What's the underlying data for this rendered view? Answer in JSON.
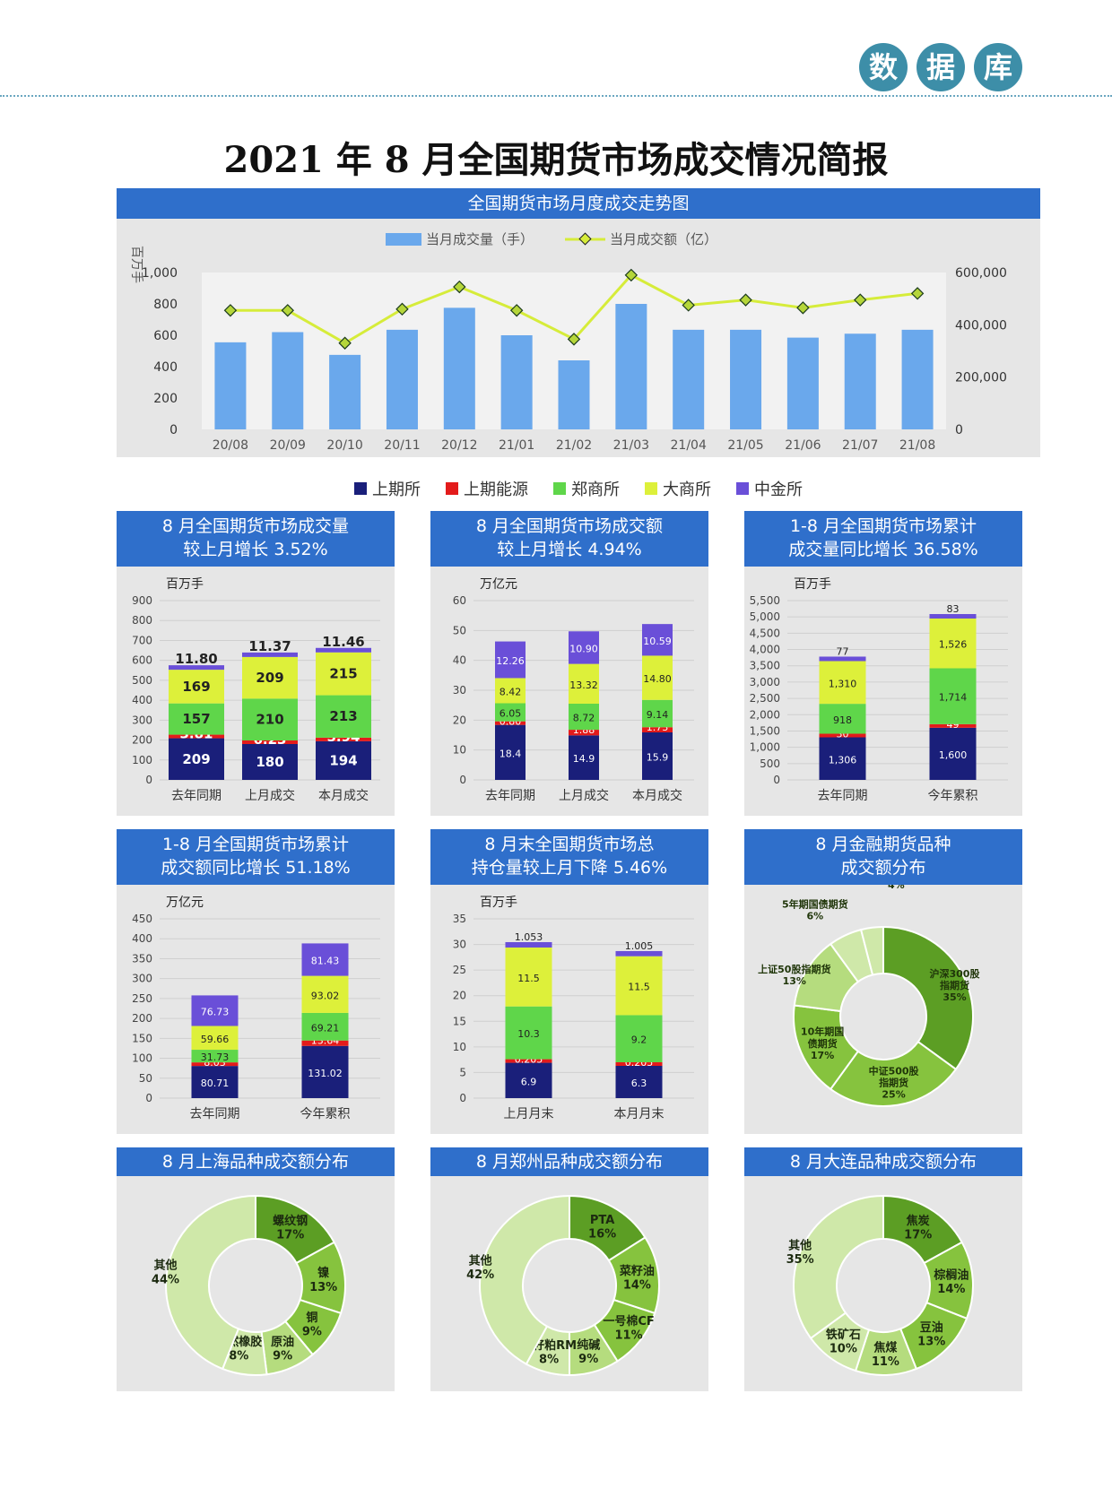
{
  "header": {
    "badge_chars": [
      "数",
      "据",
      "库"
    ]
  },
  "title": "2021 年 8 月全国期货市场成交情况简报",
  "colors": {
    "shfe": "#1a1f7a",
    "ine": "#e31b1b",
    "czce": "#5fd64a",
    "dce": "#ddf03a",
    "cffex": "#6a4fd8",
    "bar_blue": "#6aa8ec",
    "line_green": "#d6ec3a",
    "pie_dark": "#5c9e24",
    "pie_mid": "#86c33e",
    "pie_light": "#b5dc7e",
    "pie_lighter": "#cfe8a9"
  },
  "legend": [
    "上期所",
    "上期能源",
    "郑商所",
    "大商所",
    "中金所"
  ],
  "trend": {
    "title": "全国期货市场月度成交走势图",
    "left_unit": "百万手",
    "legend_bar": "当月成交量（手）",
    "legend_line": "当月成交额（亿）",
    "left_ticks": [
      "0",
      "200",
      "400",
      "600",
      "800",
      "1,000"
    ],
    "right_ticks": [
      "0",
      "200,000",
      "400,000",
      "600,000"
    ]
  },
  "panels": [
    {
      "title1": "8 月全国期货市场成交量",
      "title2": "较上月增长 3.52%",
      "unit": "百万手",
      "yticks": [
        "0",
        "100",
        "200",
        "300",
        "400",
        "500",
        "600",
        "700",
        "800",
        "900"
      ]
    },
    {
      "title1": "8 月全国期货市场成交额",
      "title2": "较上月增长 4.94%",
      "unit": "万亿元",
      "yticks": [
        "0",
        "10",
        "20",
        "30",
        "40",
        "50",
        "60"
      ]
    },
    {
      "title1": "1-8 月全国期货市场累计",
      "title2": "成交量同比增长 36.58%",
      "unit": "百万手",
      "yticks": [
        "0",
        "500",
        "1,000",
        "1,500",
        "2,000",
        "2,500",
        "3,000",
        "3,500",
        "4,000",
        "4,500",
        "5,000",
        "5,500"
      ]
    },
    {
      "title1": "1-8 月全国期货市场累计",
      "title2": "成交额同比增长 51.18%",
      "unit": "万亿元",
      "yticks": [
        "0",
        "50",
        "100",
        "150",
        "200",
        "250",
        "300",
        "350",
        "400",
        "450"
      ]
    },
    {
      "title1": "8 月末全国期货市场总",
      "title2": "持仓量较上月下降 5.46%",
      "unit": "百万手",
      "yticks": [
        "0",
        "5",
        "10",
        "15",
        "20",
        "25",
        "30",
        "35"
      ]
    },
    {
      "title1": "8 月金融期货品种",
      "title2": "成交额分布",
      "unit": "",
      "yticks": []
    },
    {
      "title1": "8 月上海品种成交额分布",
      "title2": "",
      "unit": "",
      "yticks": []
    },
    {
      "title1": "8 月郑州品种成交额分布",
      "title2": "",
      "unit": "",
      "yticks": []
    },
    {
      "title1": "8 月大连品种成交额分布",
      "title2": "",
      "unit": "",
      "yticks": []
    }
  ],
  "chart_data": [
    {
      "type": "bar+line",
      "categories": [
        "20/08",
        "20/09",
        "20/10",
        "20/11",
        "20/12",
        "21/01",
        "21/02",
        "21/03",
        "21/04",
        "21/05",
        "21/06",
        "21/07",
        "21/08"
      ],
      "series": [
        {
          "name": "当月成交量（手）",
          "axis": "left",
          "values": [
            555,
            620,
            475,
            635,
            775,
            600,
            440,
            800,
            635,
            635,
            585,
            610,
            635
          ]
        },
        {
          "name": "当月成交额（亿）",
          "axis": "right",
          "values": [
            455000,
            455000,
            330000,
            460000,
            545000,
            455000,
            345000,
            590000,
            475000,
            495000,
            465000,
            495000,
            520000
          ]
        }
      ],
      "ylim_left": [
        0,
        1000
      ],
      "ylim_right": [
        0,
        600000
      ],
      "legend": "top"
    },
    {
      "type": "bar",
      "stacked": true,
      "categories": [
        "去年同期",
        "上月成交",
        "本月成交"
      ],
      "ylim": [
        0,
        900
      ],
      "series": [
        {
          "name": "上期所",
          "values": [
            209,
            180,
            194
          ],
          "labels": [
            "209",
            "180",
            "194"
          ]
        },
        {
          "name": "上期能源",
          "values": [
            3.81,
            6.23,
            5.94
          ],
          "labels": [
            "3.81",
            "6.23",
            "5.94"
          ]
        },
        {
          "name": "郑商所",
          "values": [
            157,
            210,
            213
          ],
          "labels": [
            "157",
            "210",
            "213"
          ]
        },
        {
          "name": "大商所",
          "values": [
            169,
            209,
            215
          ],
          "labels": [
            "169",
            "209",
            "215"
          ]
        },
        {
          "name": "中金所",
          "values": [
            11.8,
            11.37,
            11.46
          ],
          "labels": [
            "11.80",
            "11.37",
            "11.46"
          ]
        }
      ]
    },
    {
      "type": "bar",
      "stacked": true,
      "categories": [
        "去年同期",
        "上月成交",
        "本月成交"
      ],
      "ylim": [
        0,
        60
      ],
      "series": [
        {
          "name": "上期所",
          "values": [
            18.4,
            14.9,
            15.9
          ],
          "labels": [
            "18.4",
            "14.9",
            "15.9"
          ]
        },
        {
          "name": "上期能源",
          "values": [
            0.8,
            1.88,
            1.73
          ],
          "labels": [
            "0.80",
            "1.88",
            "1.73"
          ]
        },
        {
          "name": "郑商所",
          "values": [
            6.05,
            8.72,
            9.14
          ],
          "labels": [
            "6.05",
            "8.72",
            "9.14"
          ]
        },
        {
          "name": "大商所",
          "values": [
            8.42,
            13.32,
            14.8
          ],
          "labels": [
            "8.42",
            "13.32",
            "14.80"
          ]
        },
        {
          "name": "中金所",
          "values": [
            12.26,
            10.9,
            10.59
          ],
          "labels": [
            "12.26",
            "10.90",
            "10.59"
          ]
        }
      ]
    },
    {
      "type": "bar",
      "stacked": true,
      "categories": [
        "去年同期",
        "今年累积"
      ],
      "ylim": [
        0,
        5500
      ],
      "series": [
        {
          "name": "上期所",
          "values": [
            1306,
            1600
          ],
          "labels": [
            "1,306",
            "1,600"
          ]
        },
        {
          "name": "上期能源",
          "values": [
            30,
            49
          ],
          "labels": [
            "30",
            "49"
          ]
        },
        {
          "name": "郑商所",
          "values": [
            918,
            1714
          ],
          "labels": [
            "918",
            "1,714"
          ]
        },
        {
          "name": "大商所",
          "values": [
            1310,
            1526
          ],
          "labels": [
            "1,310",
            "1,526"
          ]
        },
        {
          "name": "中金所",
          "values": [
            77,
            83
          ],
          "labels": [
            "77",
            "83"
          ]
        }
      ]
    },
    {
      "type": "bar",
      "stacked": true,
      "categories": [
        "去年同期",
        "今年累积"
      ],
      "ylim": [
        0,
        450
      ],
      "series": [
        {
          "name": "上期所",
          "values": [
            80.71,
            131.02
          ],
          "labels": [
            "80.71",
            "131.02"
          ]
        },
        {
          "name": "上期能源",
          "values": [
            8.03,
            13.64
          ],
          "labels": [
            "8.03",
            "13.64"
          ]
        },
        {
          "name": "郑商所",
          "values": [
            31.73,
            69.21
          ],
          "labels": [
            "31.73",
            "69.21"
          ]
        },
        {
          "name": "大商所",
          "values": [
            59.66,
            93.02
          ],
          "labels": [
            "59.66",
            "93.02"
          ]
        },
        {
          "name": "中金所",
          "values": [
            76.73,
            81.43
          ],
          "labels": [
            "76.73",
            "81.43"
          ]
        }
      ]
    },
    {
      "type": "bar",
      "stacked": true,
      "categories": [
        "上月月末",
        "本月月末"
      ],
      "ylim": [
        0,
        35
      ],
      "series": [
        {
          "name": "上期所",
          "values": [
            6.9,
            6.3
          ],
          "labels": [
            "6.9",
            "6.3"
          ]
        },
        {
          "name": "上期能源",
          "values": [
            0.205,
            0.205
          ],
          "labels": [
            "0.205",
            "0.205"
          ]
        },
        {
          "name": "郑商所",
          "values": [
            10.3,
            9.2
          ],
          "labels": [
            "10.3",
            "9.2"
          ]
        },
        {
          "name": "大商所",
          "values": [
            11.5,
            11.5
          ],
          "labels": [
            "11.5",
            "11.5"
          ]
        },
        {
          "name": "中金所",
          "values": [
            1.053,
            1.005
          ],
          "labels": [
            "1.053",
            "1.005"
          ]
        }
      ]
    },
    {
      "type": "pie",
      "donut": true,
      "slices": [
        {
          "label": "沪深300股指期货",
          "value": 35,
          "pct": "35%"
        },
        {
          "label": "中证500股指期货",
          "value": 25,
          "pct": "25%"
        },
        {
          "label": "10年期国债期货",
          "value": 17,
          "pct": "17%"
        },
        {
          "label": "上证50股指期货",
          "value": 13,
          "pct": "13%"
        },
        {
          "label": "5年期国债期货",
          "value": 6,
          "pct": "6%"
        },
        {
          "label": "其他",
          "value": 4,
          "pct": "4%"
        }
      ]
    },
    {
      "type": "pie",
      "donut": true,
      "slices": [
        {
          "label": "螺纹钢",
          "value": 17,
          "pct": "17%"
        },
        {
          "label": "镍",
          "value": 13,
          "pct": "13%"
        },
        {
          "label": "铜",
          "value": 9,
          "pct": "9%"
        },
        {
          "label": "原油",
          "value": 9,
          "pct": "9%"
        },
        {
          "label": "天然橡胶",
          "value": 8,
          "pct": "8%"
        },
        {
          "label": "其他",
          "value": 44,
          "pct": "44%"
        }
      ]
    },
    {
      "type": "pie",
      "donut": true,
      "slices": [
        {
          "label": "PTA",
          "value": 16,
          "pct": "16%"
        },
        {
          "label": "菜籽油",
          "value": 14,
          "pct": "14%"
        },
        {
          "label": "一号棉CF",
          "value": 11,
          "pct": "11%"
        },
        {
          "label": "纯碱",
          "value": 9,
          "pct": "9%"
        },
        {
          "label": "菜籽粕RM",
          "value": 8,
          "pct": "8%"
        },
        {
          "label": "其他",
          "value": 42,
          "pct": "42%"
        }
      ]
    },
    {
      "type": "pie",
      "donut": true,
      "slices": [
        {
          "label": "焦炭",
          "value": 17,
          "pct": "17%"
        },
        {
          "label": "棕榈油",
          "value": 14,
          "pct": "14%"
        },
        {
          "label": "豆油",
          "value": 13,
          "pct": "13%"
        },
        {
          "label": "焦煤",
          "value": 11,
          "pct": "11%"
        },
        {
          "label": "铁矿石",
          "value": 10,
          "pct": "10%"
        },
        {
          "label": "其他",
          "value": 35,
          "pct": "35%"
        }
      ]
    }
  ]
}
